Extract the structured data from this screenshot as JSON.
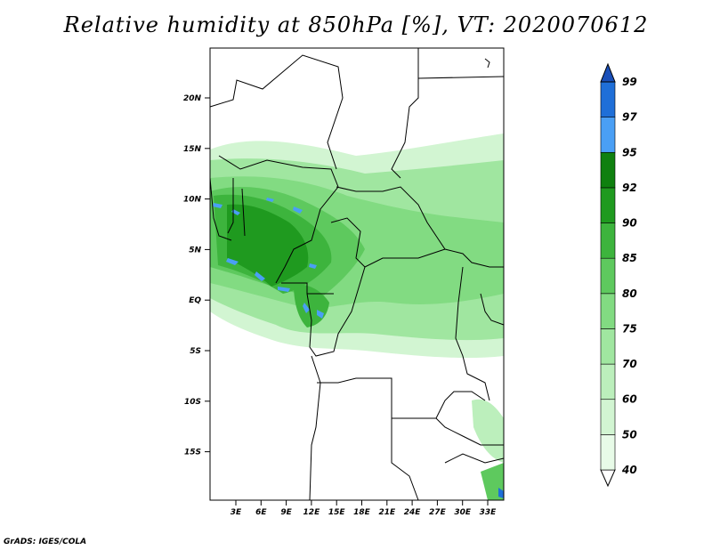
{
  "title": "Relative humidity at 850hPa [%], VT: 2020070612",
  "credit": "GrADS: IGES/COLA",
  "map": {
    "lon_ticks": [
      "3E",
      "6E",
      "9E",
      "12E",
      "15E",
      "18E",
      "21E",
      "24E",
      "27E",
      "30E",
      "33E"
    ],
    "lat_ticks": [
      "20N",
      "15N",
      "10N",
      "5N",
      "EQ",
      "5S",
      "10S",
      "15S"
    ]
  },
  "colorbar": {
    "levels": [
      "40",
      "50",
      "60",
      "70",
      "75",
      "80",
      "85",
      "90",
      "92",
      "95",
      "97",
      "99"
    ],
    "colors": [
      "#ffffff",
      "#e8fbe8",
      "#d2f5d2",
      "#bcefbc",
      "#a0e6a0",
      "#82db82",
      "#5ec95e",
      "#3db43d",
      "#1f9a1f",
      "#0f800f",
      "#4a9ff5",
      "#1f6fd8",
      "#1a4fb8"
    ]
  }
}
